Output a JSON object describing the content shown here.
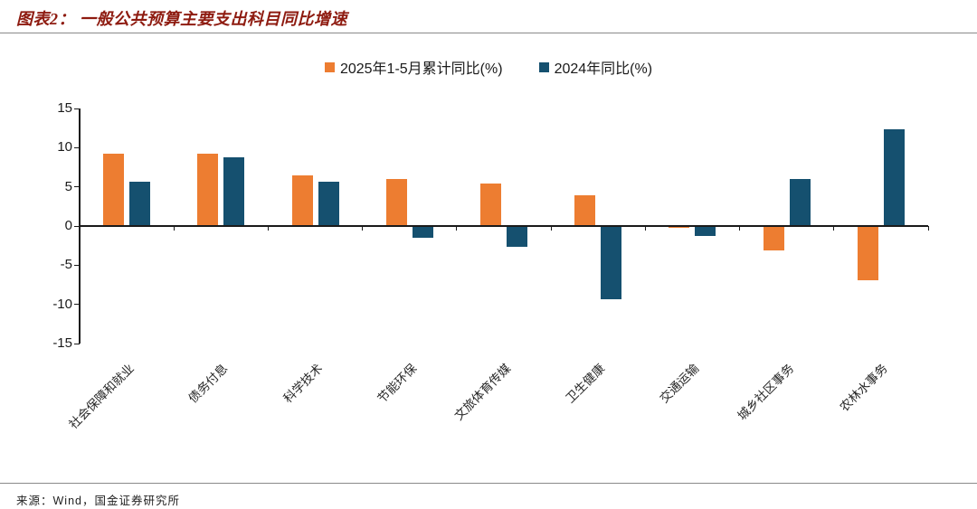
{
  "header": {
    "title": "图表2： 一般公共预算主要支出科目同比增速",
    "title_color": "#8E1B10"
  },
  "footer": {
    "source": "来源：Wind，国金证券研究所"
  },
  "chart_data": {
    "type": "bar",
    "title": "一般公共预算主要支出科目同比增速",
    "categories": [
      "社会保障和就业",
      "债务付息",
      "科学技术",
      "节能环保",
      "文旅体育传媒",
      "卫生健康",
      "交通运输",
      "城乡社区事务",
      "农林水事务"
    ],
    "series": [
      {
        "name": "2025年1-5月累计同比(%)",
        "color": "#ED7D31",
        "values": [
          9.2,
          9.2,
          6.5,
          6.0,
          5.4,
          3.9,
          -0.2,
          -3.1,
          -6.9
        ]
      },
      {
        "name": "2024年同比(%)",
        "color": "#15506F",
        "values": [
          5.6,
          8.8,
          5.7,
          -1.5,
          -2.6,
          -9.3,
          -1.3,
          6.0,
          12.4
        ]
      }
    ],
    "ylim": [
      -15,
      15
    ],
    "yticks": [
      15,
      10,
      5,
      0,
      -5,
      -10,
      -15
    ],
    "grid": false,
    "legend_position": "top-center",
    "axis_color": "#1a1a1a"
  }
}
